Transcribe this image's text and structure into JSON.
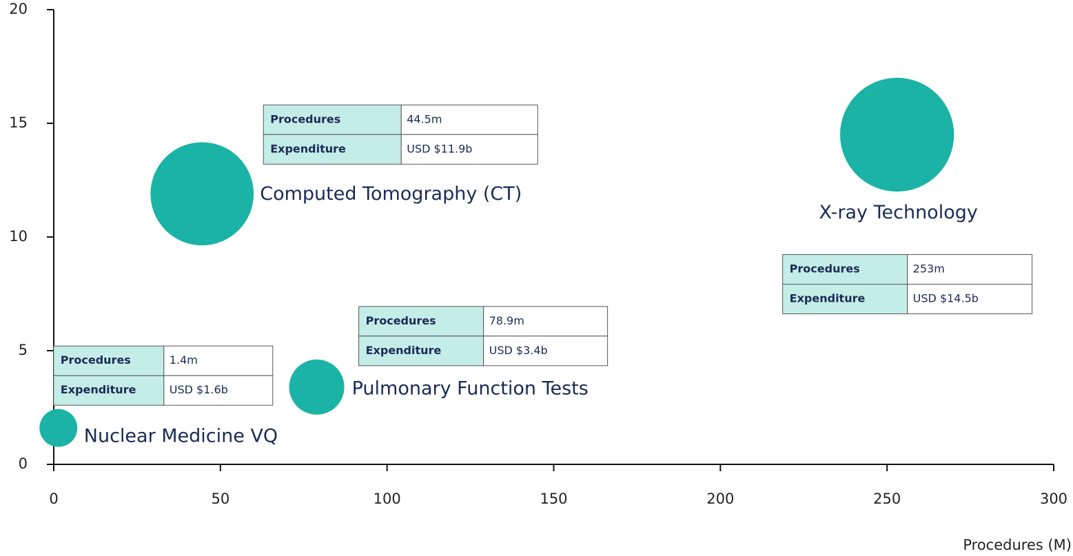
{
  "chart_data": {
    "type": "bubble",
    "xlabel": "Procedures (M)",
    "xlim": [
      0,
      300
    ],
    "xticks": [
      0,
      50,
      100,
      150,
      200,
      250,
      300
    ],
    "ylim": [
      0,
      20
    ],
    "yticks": [
      0,
      5,
      10,
      15,
      20
    ],
    "color": "#1ab3a6",
    "labels": [
      "Nuclear Medicine VQ",
      "Pulmonary Function Tests",
      "Computed Tomography (CT)",
      "X-ray Technology"
    ],
    "x": [
      1.4,
      78.9,
      44.5,
      253
    ],
    "x_labels": [
      "1.4m",
      "78.9m",
      "44.5m",
      "253m"
    ],
    "values": [
      1.6,
      3.4,
      11.9,
      14.5
    ],
    "value_labels": [
      "USD $1.6b",
      "USD $3.4b",
      "USD $11.9b",
      "USD $14.5b"
    ],
    "table_headers": [
      "Procedures",
      "Expenditure"
    ]
  }
}
